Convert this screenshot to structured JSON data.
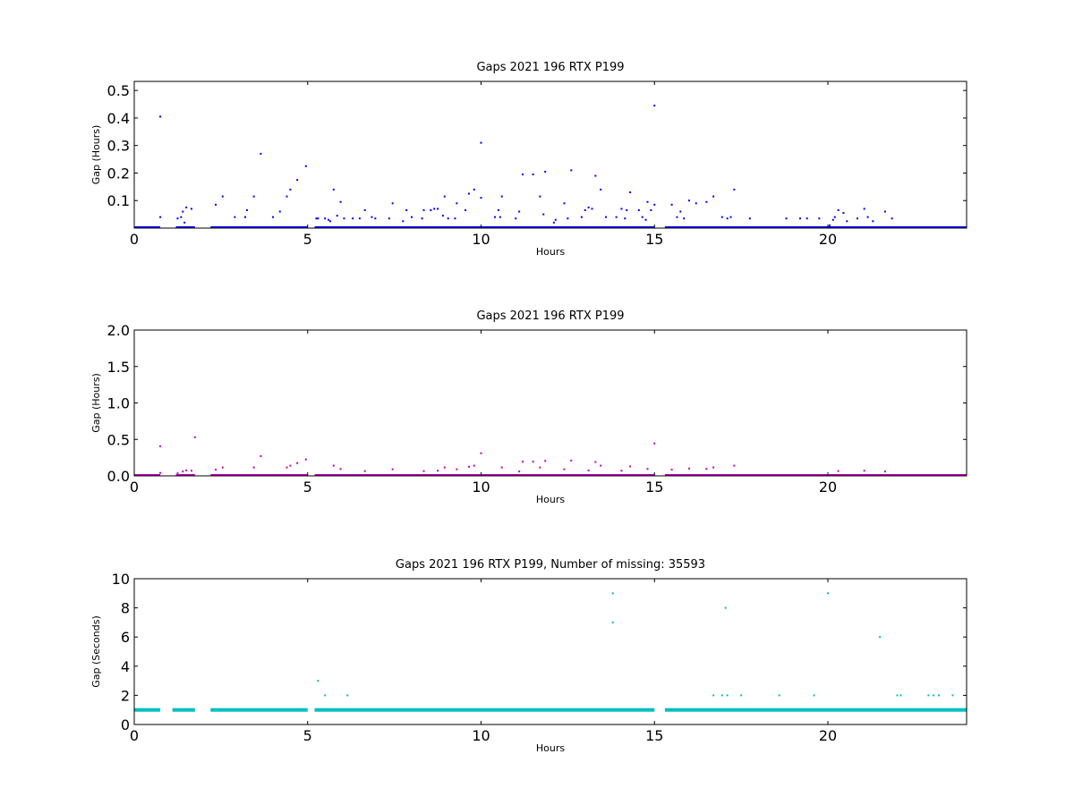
{
  "colors": {
    "blue": "#0000ff",
    "magenta": "#bf00bf",
    "cyan": "#00bfbf",
    "frame": "#000000"
  },
  "chart_data": [
    {
      "type": "scatter",
      "title": "Gaps 2021 196 RTX  P199",
      "xlabel": "Hours",
      "ylabel": "Gap (Hours)",
      "xlim": [
        0,
        24
      ],
      "ylim": [
        0,
        0.533
      ],
      "xticks": [
        0,
        5,
        10,
        15,
        20
      ],
      "xtick_labels": [
        "0",
        "5",
        "10",
        "15",
        "20"
      ],
      "yticks": [
        0.1,
        0.2,
        0.3,
        0.4,
        0.5
      ],
      "ytick_labels": [
        "0.1",
        "0.2",
        "0.3",
        "0.4",
        "0.5"
      ],
      "color": "#0000ff",
      "baseline": {
        "value": 0.0,
        "coverage": [
          [
            0,
            0.75
          ],
          [
            1.2,
            1.75
          ],
          [
            2.2,
            5.0
          ],
          [
            5.2,
            15.0
          ],
          [
            15.3,
            24
          ]
        ]
      },
      "points": [
        [
          0.75,
          0.04
        ],
        [
          0.75,
          0.405
        ],
        [
          1.25,
          0.035
        ],
        [
          1.35,
          0.04
        ],
        [
          1.4,
          0.06
        ],
        [
          1.45,
          0.02
        ],
        [
          1.5,
          0.075
        ],
        [
          1.65,
          0.07
        ],
        [
          2.35,
          0.085
        ],
        [
          2.55,
          0.115
        ],
        [
          2.9,
          0.04
        ],
        [
          3.2,
          0.04
        ],
        [
          3.25,
          0.065
        ],
        [
          3.45,
          0.115
        ],
        [
          3.65,
          0.27
        ],
        [
          4.0,
          0.04
        ],
        [
          4.2,
          0.06
        ],
        [
          4.4,
          0.115
        ],
        [
          4.5,
          0.14
        ],
        [
          4.7,
          0.175
        ],
        [
          4.95,
          0.225
        ],
        [
          5.25,
          0.035
        ],
        [
          5.3,
          0.035
        ],
        [
          5.5,
          0.035
        ],
        [
          5.6,
          0.03
        ],
        [
          5.65,
          0.025
        ],
        [
          5.75,
          0.14
        ],
        [
          5.85,
          0.045
        ],
        [
          5.95,
          0.095
        ],
        [
          6.05,
          0.035
        ],
        [
          6.3,
          0.035
        ],
        [
          6.5,
          0.035
        ],
        [
          6.65,
          0.065
        ],
        [
          6.85,
          0.04
        ],
        [
          6.95,
          0.035
        ],
        [
          7.35,
          0.035
        ],
        [
          7.45,
          0.09
        ],
        [
          7.75,
          0.025
        ],
        [
          7.85,
          0.065
        ],
        [
          8.0,
          0.04
        ],
        [
          8.3,
          0.035
        ],
        [
          8.35,
          0.065
        ],
        [
          8.55,
          0.065
        ],
        [
          8.65,
          0.07
        ],
        [
          8.75,
          0.07
        ],
        [
          8.9,
          0.045
        ],
        [
          8.95,
          0.115
        ],
        [
          9.05,
          0.035
        ],
        [
          9.25,
          0.035
        ],
        [
          9.3,
          0.09
        ],
        [
          9.55,
          0.065
        ],
        [
          9.65,
          0.125
        ],
        [
          9.8,
          0.14
        ],
        [
          10.0,
          0.11
        ],
        [
          10.0,
          0.31
        ],
        [
          10.4,
          0.04
        ],
        [
          10.5,
          0.065
        ],
        [
          10.55,
          0.04
        ],
        [
          10.6,
          0.115
        ],
        [
          11.0,
          0.035
        ],
        [
          11.1,
          0.06
        ],
        [
          11.2,
          0.195
        ],
        [
          11.5,
          0.195
        ],
        [
          11.7,
          0.115
        ],
        [
          11.8,
          0.05
        ],
        [
          11.85,
          0.205
        ],
        [
          12.1,
          0.02
        ],
        [
          12.15,
          0.03
        ],
        [
          12.4,
          0.09
        ],
        [
          12.5,
          0.035
        ],
        [
          12.6,
          0.21
        ],
        [
          12.9,
          0.04
        ],
        [
          13.0,
          0.065
        ],
        [
          13.1,
          0.075
        ],
        [
          13.2,
          0.07
        ],
        [
          13.3,
          0.19
        ],
        [
          13.45,
          0.14
        ],
        [
          13.6,
          0.04
        ],
        [
          13.9,
          0.04
        ],
        [
          14.05,
          0.07
        ],
        [
          14.15,
          0.035
        ],
        [
          14.2,
          0.065
        ],
        [
          14.3,
          0.13
        ],
        [
          14.55,
          0.065
        ],
        [
          14.65,
          0.04
        ],
        [
          14.75,
          0.03
        ],
        [
          14.8,
          0.095
        ],
        [
          14.9,
          0.065
        ],
        [
          15.0,
          0.085
        ],
        [
          15.0,
          0.445
        ],
        [
          15.5,
          0.085
        ],
        [
          15.65,
          0.04
        ],
        [
          15.75,
          0.06
        ],
        [
          15.85,
          0.035
        ],
        [
          16.0,
          0.1
        ],
        [
          16.2,
          0.09
        ],
        [
          16.5,
          0.095
        ],
        [
          16.7,
          0.115
        ],
        [
          16.95,
          0.04
        ],
        [
          17.1,
          0.035
        ],
        [
          17.2,
          0.04
        ],
        [
          17.3,
          0.14
        ],
        [
          17.75,
          0.035
        ],
        [
          18.8,
          0.035
        ],
        [
          19.2,
          0.035
        ],
        [
          19.4,
          0.035
        ],
        [
          19.75,
          0.035
        ],
        [
          20.05,
          0.01
        ],
        [
          20.15,
          0.03
        ],
        [
          20.2,
          0.04
        ],
        [
          20.3,
          0.065
        ],
        [
          20.45,
          0.055
        ],
        [
          20.55,
          0.025
        ],
        [
          20.85,
          0.035
        ],
        [
          21.05,
          0.07
        ],
        [
          21.15,
          0.04
        ],
        [
          21.3,
          0.025
        ],
        [
          21.65,
          0.06
        ],
        [
          21.85,
          0.035
        ]
      ]
    },
    {
      "type": "scatter",
      "title": "Gaps 2021 196 RTX  P199",
      "xlabel": "Hours",
      "ylabel": "Gap (Hours)",
      "xlim": [
        0,
        24
      ],
      "ylim": [
        0,
        2.0
      ],
      "xticks": [
        0,
        5,
        10,
        15,
        20
      ],
      "xtick_labels": [
        "0",
        "5",
        "10",
        "15",
        "20"
      ],
      "yticks": [
        0.0,
        0.5,
        1.0,
        1.5,
        2.0
      ],
      "ytick_labels": [
        "0.0",
        "0.5",
        "1.0",
        "1.5",
        "2.0"
      ],
      "color": "#bf00bf",
      "baseline": {
        "value": 0.0,
        "coverage": [
          [
            0,
            0.75
          ],
          [
            1.2,
            1.75
          ],
          [
            2.2,
            5.0
          ],
          [
            5.2,
            15.0
          ],
          [
            15.3,
            24
          ]
        ]
      },
      "points": [
        [
          0.75,
          0.04
        ],
        [
          0.75,
          0.405
        ],
        [
          1.25,
          0.035
        ],
        [
          1.4,
          0.06
        ],
        [
          1.5,
          0.075
        ],
        [
          1.65,
          0.07
        ],
        [
          1.75,
          0.53
        ],
        [
          2.35,
          0.085
        ],
        [
          2.55,
          0.115
        ],
        [
          3.45,
          0.115
        ],
        [
          3.65,
          0.27
        ],
        [
          4.4,
          0.115
        ],
        [
          4.5,
          0.14
        ],
        [
          4.7,
          0.175
        ],
        [
          4.95,
          0.225
        ],
        [
          5.75,
          0.14
        ],
        [
          5.95,
          0.095
        ],
        [
          6.65,
          0.065
        ],
        [
          7.45,
          0.09
        ],
        [
          8.35,
          0.065
        ],
        [
          8.75,
          0.07
        ],
        [
          8.95,
          0.115
        ],
        [
          9.3,
          0.09
        ],
        [
          9.65,
          0.125
        ],
        [
          9.8,
          0.14
        ],
        [
          10.0,
          0.31
        ],
        [
          10.6,
          0.115
        ],
        [
          11.1,
          0.06
        ],
        [
          11.2,
          0.195
        ],
        [
          11.5,
          0.195
        ],
        [
          11.7,
          0.115
        ],
        [
          11.85,
          0.205
        ],
        [
          12.4,
          0.09
        ],
        [
          12.6,
          0.21
        ],
        [
          13.1,
          0.075
        ],
        [
          13.3,
          0.19
        ],
        [
          13.45,
          0.14
        ],
        [
          14.05,
          0.07
        ],
        [
          14.3,
          0.13
        ],
        [
          14.8,
          0.095
        ],
        [
          15.0,
          0.445
        ],
        [
          15.5,
          0.085
        ],
        [
          16.0,
          0.1
        ],
        [
          16.5,
          0.095
        ],
        [
          16.7,
          0.115
        ],
        [
          17.3,
          0.14
        ],
        [
          20.3,
          0.065
        ],
        [
          21.05,
          0.07
        ],
        [
          21.65,
          0.06
        ]
      ]
    },
    {
      "type": "scatter",
      "title": "Gaps 2021 196 RTX  P199, Number of missing: 35593",
      "xlabel": "Hours",
      "ylabel": "Gap (Seconds)",
      "xlim": [
        0,
        24
      ],
      "ylim": [
        0,
        10
      ],
      "xticks": [
        0,
        5,
        10,
        15,
        20
      ],
      "xtick_labels": [
        "0",
        "5",
        "10",
        "15",
        "20"
      ],
      "yticks": [
        0,
        2,
        4,
        6,
        8,
        10
      ],
      "ytick_labels": [
        "0",
        "2",
        "4",
        "6",
        "8",
        "10"
      ],
      "color": "#00bfbf",
      "baseline": {
        "value": 1.0,
        "coverage": [
          [
            0,
            0.75
          ],
          [
            1.1,
            1.75
          ],
          [
            2.2,
            5.0
          ],
          [
            5.2,
            15.0
          ],
          [
            15.3,
            24
          ]
        ]
      },
      "points": [
        [
          5.3,
          3.0
        ],
        [
          5.5,
          2.0
        ],
        [
          6.15,
          2.0
        ],
        [
          13.8,
          9.0
        ],
        [
          13.8,
          7.0
        ],
        [
          16.7,
          2.0
        ],
        [
          16.95,
          2.0
        ],
        [
          17.05,
          8.0
        ],
        [
          17.1,
          2.0
        ],
        [
          17.5,
          2.0
        ],
        [
          18.6,
          2.0
        ],
        [
          19.6,
          2.0
        ],
        [
          20.0,
          9.0
        ],
        [
          21.5,
          6.0
        ],
        [
          22.0,
          2.0
        ],
        [
          22.1,
          2.0
        ],
        [
          22.9,
          2.0
        ],
        [
          23.05,
          2.0
        ],
        [
          23.2,
          2.0
        ],
        [
          23.6,
          2.0
        ]
      ]
    }
  ]
}
